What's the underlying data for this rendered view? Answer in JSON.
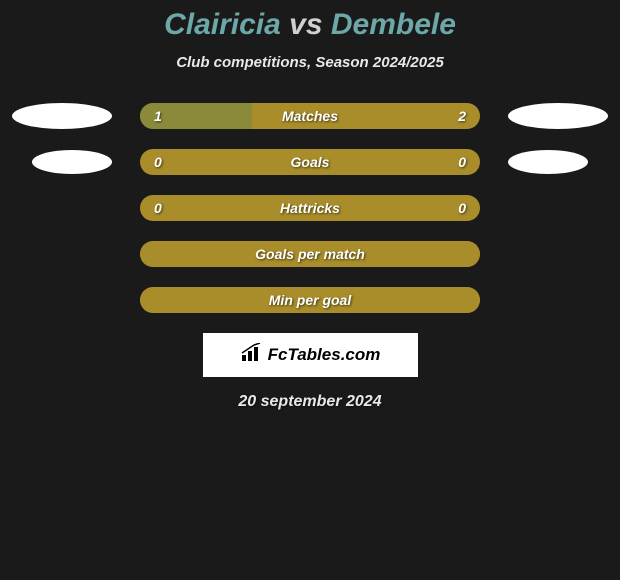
{
  "title": {
    "player1": "Clairicia",
    "vs": "vs",
    "player2": "Dembele",
    "player1_color": "#6da8a8",
    "vs_color": "#d0d0d0",
    "player2_color": "#6da8a8"
  },
  "subtitle": "Club competitions, Season 2024/2025",
  "colors": {
    "background": "#1a1a1a",
    "bar_base": "#a88d2a",
    "bar_fill": "#8a8a3a",
    "oval": "#ffffff",
    "text": "#ffffff",
    "subtitle": "#e8e8e8"
  },
  "stats": [
    {
      "label": "Matches",
      "left_value": "1",
      "right_value": "2",
      "left_pct": 33,
      "show_ovals": true,
      "oval_small": false,
      "bar_bg": "#a88d2a",
      "fill_color": "#8a8a3a"
    },
    {
      "label": "Goals",
      "left_value": "0",
      "right_value": "0",
      "left_pct": 0,
      "show_ovals": true,
      "oval_small": true,
      "bar_bg": "#a88d2a",
      "fill_color": "#8a8a3a"
    },
    {
      "label": "Hattricks",
      "left_value": "0",
      "right_value": "0",
      "left_pct": 0,
      "show_ovals": false,
      "oval_small": false,
      "bar_bg": "#a88d2a",
      "fill_color": "#8a8a3a"
    },
    {
      "label": "Goals per match",
      "left_value": "",
      "right_value": "",
      "left_pct": 100,
      "show_ovals": false,
      "oval_small": false,
      "bar_bg": "#a88d2a",
      "fill_color": "#a88d2a"
    },
    {
      "label": "Min per goal",
      "left_value": "",
      "right_value": "",
      "left_pct": 100,
      "show_ovals": false,
      "oval_small": false,
      "bar_bg": "#a88d2a",
      "fill_color": "#a88d2a"
    }
  ],
  "logo": {
    "text": "FcTables.com"
  },
  "footer_date": "20 september 2024"
}
